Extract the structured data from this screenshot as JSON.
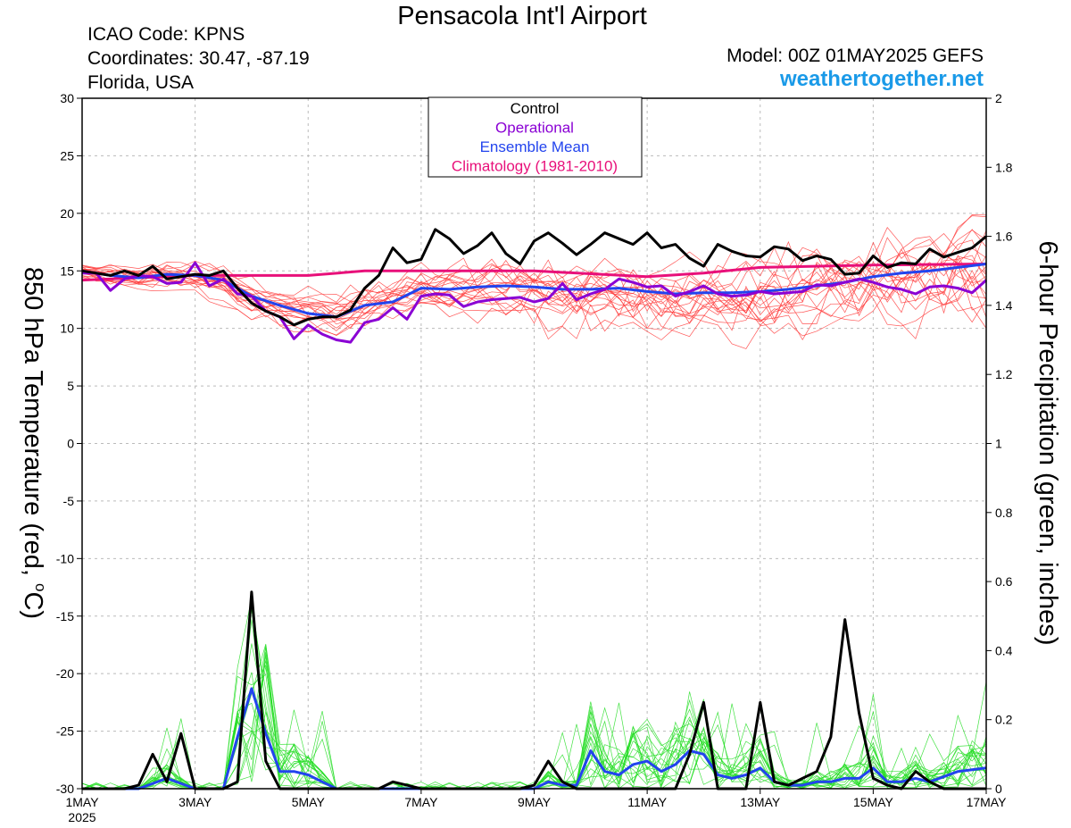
{
  "header": {
    "title": "Pensacola Int'l Airport",
    "icao": "ICAO Code: KPNS",
    "coords": "Coordinates: 30.47, -87.19",
    "region": "Florida, USA",
    "model": "Model: 00Z 01MAY2025 GEFS",
    "site": "weathertogether.net"
  },
  "colors": {
    "control": "#000000",
    "operational": "#8a00d4",
    "ensemble_mean": "#2244ee",
    "climatology": "#e8107a",
    "temp_members": "#ff3a3a",
    "precip_members": "#22dd22",
    "site": "#1a9ae8"
  },
  "chart_data": {
    "type": "line",
    "ylabel_left": "850 hPa Temperature (red, °C)",
    "ylabel_left_pre": "850 hPa Temperature (red, ",
    "ylabel_left_deg": "o",
    "ylabel_left_post": "C)",
    "ylabel_right": "6-hour Precipitation (green, inches)",
    "left_ticks": [
      "30",
      "25",
      "20",
      "15",
      "10",
      "5",
      "0",
      "-5",
      "-10",
      "-15",
      "-20",
      "-25",
      "-30"
    ],
    "left_ylim": [
      -30,
      30
    ],
    "right_ticks": [
      "2",
      "1.8",
      "1.6",
      "1.4",
      "1.2",
      "1",
      "0.8",
      "0.6",
      "0.4",
      "0.2",
      "0"
    ],
    "right_ylim": [
      0,
      2
    ],
    "x_ticks": [
      "1MAY",
      "3MAY",
      "5MAY",
      "7MAY",
      "9MAY",
      "11MAY",
      "13MAY",
      "15MAY",
      "17MAY"
    ],
    "x_year": "2025",
    "x_range_days": [
      1,
      17
    ],
    "legend": [
      {
        "label": "Control",
        "color": "#000000"
      },
      {
        "label": "Operational",
        "color": "#8a00d4"
      },
      {
        "label": "Ensemble Mean",
        "color": "#2244ee"
      },
      {
        "label": "Climatology (1981-2010)",
        "color": "#e8107a"
      }
    ],
    "legend_position": "top-center",
    "grid": true,
    "series": [
      {
        "name": "Climatology (1981-2010)",
        "axis": "left",
        "x": [
          1,
          3,
          5,
          6,
          9,
          11,
          12,
          13,
          15,
          17
        ],
        "values": [
          14.2,
          14.6,
          14.6,
          15.0,
          15.0,
          14.5,
          14.8,
          15.3,
          15.5,
          15.6
        ]
      },
      {
        "name": "Ensemble Mean",
        "axis": "left",
        "x": [
          1,
          1.5,
          2,
          2.5,
          3,
          3.5,
          4,
          4.5,
          5,
          5.5,
          6,
          6.5,
          7,
          7.5,
          8,
          8.5,
          9,
          9.5,
          10,
          10.5,
          11,
          11.5,
          12,
          12.5,
          13,
          13.5,
          14,
          14.5,
          15,
          15.5,
          16,
          16.5,
          17
        ],
        "values": [
          15.0,
          14.6,
          14.4,
          14.7,
          14.6,
          14.2,
          12.8,
          12.0,
          11.3,
          11.0,
          12.0,
          12.3,
          13.5,
          13.4,
          13.6,
          13.7,
          13.6,
          13.4,
          13.4,
          13.5,
          13.2,
          13.0,
          13.1,
          13.1,
          13.2,
          13.4,
          13.7,
          14.0,
          14.5,
          14.8,
          15.0,
          15.3,
          15.6
        ]
      },
      {
        "name": "Operational",
        "axis": "left",
        "x": [
          1,
          1.25,
          1.5,
          1.75,
          2,
          2.25,
          2.5,
          2.75,
          3,
          3.25,
          3.5,
          3.75,
          4,
          4.25,
          4.5,
          4.75,
          5,
          5.25,
          5.5,
          5.75,
          6,
          6.25,
          6.5,
          6.75,
          7,
          7.25,
          7.5,
          7.75,
          8,
          8.25,
          8.5,
          8.75,
          9,
          9.25,
          9.5,
          9.75,
          10,
          10.25,
          10.5,
          10.75,
          11,
          11.25,
          11.5,
          11.75,
          12,
          12.25,
          12.5,
          12.75,
          13,
          13.25,
          13.5,
          13.75,
          14,
          14.25,
          14.5,
          14.75,
          15,
          15.25,
          15.5,
          15.75,
          16,
          16.25,
          16.5,
          16.75,
          17
        ],
        "values": [
          14.8,
          14.8,
          13.3,
          14.3,
          14.6,
          14.5,
          13.9,
          14.0,
          15.7,
          13.7,
          14.3,
          13.0,
          12.8,
          11.5,
          11.0,
          9.1,
          10.3,
          9.5,
          9.0,
          8.8,
          10.5,
          10.8,
          11.8,
          10.8,
          12.8,
          13.0,
          12.9,
          11.9,
          12.3,
          12.5,
          12.6,
          12.7,
          12.3,
          12.6,
          13.9,
          12.5,
          13.0,
          13.4,
          14.3,
          14.0,
          13.6,
          13.7,
          12.8,
          13.2,
          13.7,
          13.0,
          12.8,
          12.9,
          13.2,
          13.0,
          13.1,
          13.2,
          13.8,
          13.7,
          14.0,
          14.3,
          14.0,
          13.6,
          13.4,
          13.0,
          13.6,
          13.7,
          13.5,
          13.1,
          14.2
        ]
      },
      {
        "name": "Control",
        "axis": "left",
        "x": [
          1,
          1.25,
          1.5,
          1.75,
          2,
          2.25,
          2.5,
          2.75,
          3,
          3.25,
          3.5,
          3.75,
          4,
          4.25,
          4.5,
          4.75,
          5,
          5.25,
          5.5,
          5.75,
          6,
          6.25,
          6.5,
          6.75,
          7,
          7.25,
          7.5,
          7.75,
          8,
          8.25,
          8.5,
          8.75,
          9,
          9.25,
          9.5,
          9.75,
          10,
          10.25,
          10.5,
          10.75,
          11,
          11.25,
          11.5,
          11.75,
          12,
          12.25,
          12.5,
          12.75,
          13,
          13.25,
          13.5,
          13.75,
          14,
          14.25,
          14.5,
          14.75,
          15,
          15.25,
          15.5,
          15.75,
          16,
          16.25,
          16.5,
          16.75,
          17
        ],
        "values": [
          15.0,
          14.8,
          14.6,
          15.0,
          14.6,
          15.4,
          14.3,
          14.5,
          14.7,
          14.6,
          15.0,
          13.5,
          12.2,
          11.5,
          11.0,
          10.3,
          10.8,
          11.0,
          11.0,
          11.6,
          13.5,
          14.6,
          17.0,
          15.7,
          16.0,
          18.6,
          17.8,
          16.5,
          17.2,
          18.3,
          16.5,
          15.6,
          17.6,
          18.3,
          17.4,
          16.4,
          17.3,
          18.3,
          17.8,
          17.3,
          18.3,
          17.0,
          17.3,
          16.1,
          15.4,
          17.3,
          16.7,
          16.3,
          16.2,
          17.1,
          16.9,
          15.9,
          16.3,
          16.0,
          14.7,
          14.8,
          16.3,
          15.3,
          15.7,
          15.6,
          16.9,
          16.2,
          16.6,
          17.0,
          18.0
        ]
      },
      {
        "name": "Control",
        "axis": "right",
        "x": [
          1,
          1.25,
          1.5,
          1.75,
          2,
          2.25,
          2.5,
          2.75,
          3,
          3.25,
          3.5,
          3.75,
          4,
          4.25,
          4.5,
          4.75,
          5,
          5.25,
          5.5,
          5.75,
          6,
          6.25,
          6.5,
          6.75,
          7,
          7.25,
          7.5,
          7.75,
          8,
          8.25,
          8.5,
          8.75,
          9,
          9.25,
          9.5,
          9.75,
          10,
          10.25,
          10.5,
          10.75,
          11,
          11.25,
          11.5,
          11.75,
          12,
          12.25,
          12.5,
          12.75,
          13,
          13.25,
          13.5,
          13.75,
          14,
          14.25,
          14.5,
          14.75,
          15,
          15.25,
          15.5,
          15.75,
          16,
          16.25,
          16.5,
          16.75,
          17
        ],
        "values": [
          0,
          0,
          0,
          0,
          0.01,
          0.1,
          0.02,
          0.16,
          0,
          0,
          0,
          0.02,
          0.57,
          0.08,
          0,
          0,
          0,
          0,
          0,
          0,
          0,
          0,
          0.02,
          0.01,
          0,
          0,
          0,
          0,
          0,
          0,
          0,
          0,
          0.01,
          0.08,
          0.02,
          0,
          0,
          0,
          0,
          0,
          0,
          0,
          0,
          0.1,
          0.25,
          0,
          0,
          0,
          0.25,
          0.02,
          0.01,
          0.03,
          0.05,
          0.15,
          0.49,
          0.22,
          0.03,
          0.01,
          0,
          0.05,
          0.02,
          0,
          0,
          0,
          0
        ]
      },
      {
        "name": "Ensemble Mean",
        "axis": "right",
        "x": [
          1,
          1.5,
          2,
          2.5,
          3,
          3.5,
          3.75,
          4,
          4.25,
          4.5,
          4.75,
          5,
          5.25,
          5.5,
          6,
          6.5,
          7,
          7.5,
          8,
          8.5,
          9,
          9.25,
          9.5,
          9.75,
          10,
          10.25,
          10.5,
          10.75,
          11,
          11.25,
          11.5,
          11.75,
          12,
          12.25,
          12.5,
          12.75,
          13,
          13.25,
          13.5,
          13.75,
          14,
          14.25,
          14.5,
          14.75,
          15,
          15.25,
          15.5,
          15.75,
          16,
          16.5,
          17
        ],
        "values": [
          0,
          0,
          0,
          0.03,
          0,
          0,
          0.15,
          0.29,
          0.16,
          0.05,
          0.05,
          0.04,
          0.02,
          0,
          0,
          0,
          0,
          0,
          0,
          0,
          0,
          0.02,
          0.01,
          0.01,
          0.11,
          0.05,
          0.04,
          0.07,
          0.08,
          0.05,
          0.07,
          0.11,
          0.1,
          0.04,
          0.03,
          0.04,
          0.06,
          0.02,
          0.01,
          0.01,
          0.02,
          0.02,
          0.03,
          0.03,
          0.06,
          0.02,
          0.02,
          0.03,
          0.02,
          0.05,
          0.06
        ]
      }
    ]
  }
}
